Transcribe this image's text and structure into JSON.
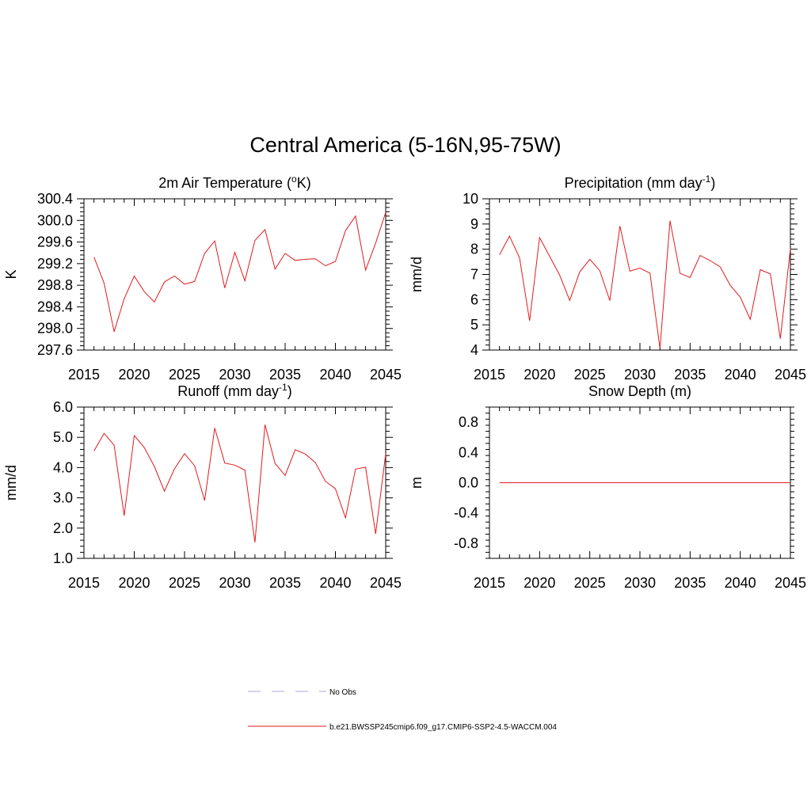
{
  "title": "Central America (5-16N,95-75W)",
  "colors": {
    "model": "#e31a1c",
    "obs": "#aaaadd",
    "axis": "#000000"
  },
  "legend": [
    {
      "label": "No Obs",
      "style": "dashed",
      "color": "#aaaadd"
    },
    {
      "label": "b.e21.BWSSP245cmip6.f09_g17.CMIP6-SSP2-4.5-WACCM.004",
      "style": "solid",
      "color": "#e31a1c"
    }
  ],
  "chart_data": [
    {
      "type": "line",
      "title": "2m Air Temperature (°K)",
      "title_html": "2m Air Temperature (<tspan baseline-shift='super' font-size='12'>o</tspan>K)",
      "ylabel": "K",
      "xlim": [
        2015,
        2045
      ],
      "ylim": [
        297.6,
        300.4
      ],
      "xticks": [
        2015,
        2020,
        2025,
        2030,
        2035,
        2040,
        2045
      ],
      "yticks": [
        "297.6",
        "298.0",
        "298.4",
        "298.8",
        "299.2",
        "299.6",
        "300.0",
        "300.4"
      ],
      "x": [
        2016,
        2017,
        2018,
        2019,
        2020,
        2021,
        2022,
        2023,
        2024,
        2025,
        2026,
        2027,
        2028,
        2029,
        2030,
        2031,
        2032,
        2033,
        2034,
        2035,
        2036,
        2037,
        2038,
        2039,
        2040,
        2041,
        2042,
        2043,
        2044,
        2045
      ],
      "series": [
        {
          "values": [
            299.32,
            298.84,
            297.94,
            298.55,
            298.97,
            298.68,
            298.49,
            298.86,
            298.97,
            298.82,
            298.87,
            299.39,
            299.62,
            298.75,
            299.41,
            298.88,
            299.63,
            299.83,
            299.1,
            299.39,
            299.26,
            299.28,
            299.29,
            299.16,
            299.24,
            299.81,
            300.08,
            299.08,
            299.58,
            300.15
          ]
        }
      ]
    },
    {
      "type": "line",
      "title": "Precipitation (mm day-1)",
      "title_html": "Precipitation (mm day<tspan baseline-shift='super' font-size='12'>-1</tspan>)",
      "ylabel": "mm/d",
      "xlim": [
        2015,
        2045
      ],
      "ylim": [
        4,
        10
      ],
      "xticks": [
        2015,
        2020,
        2025,
        2030,
        2035,
        2040,
        2045
      ],
      "yticks": [
        "4",
        "5",
        "6",
        "7",
        "8",
        "9",
        "10"
      ],
      "x": [
        2016,
        2017,
        2018,
        2019,
        2020,
        2021,
        2022,
        2023,
        2024,
        2025,
        2026,
        2027,
        2028,
        2029,
        2030,
        2031,
        2032,
        2033,
        2034,
        2035,
        2036,
        2037,
        2038,
        2039,
        2040,
        2041,
        2042,
        2043,
        2044,
        2045
      ],
      "series": [
        {
          "values": [
            7.78,
            8.52,
            7.66,
            5.16,
            8.46,
            7.72,
            6.97,
            5.97,
            7.1,
            7.6,
            7.15,
            5.96,
            8.92,
            7.13,
            7.25,
            7.05,
            4.06,
            9.13,
            7.04,
            6.88,
            7.75,
            7.55,
            7.3,
            6.57,
            6.1,
            5.22,
            7.19,
            7.02,
            4.45,
            8.02
          ]
        }
      ]
    },
    {
      "type": "line",
      "title": "Runoff (mm day-1)",
      "title_html": "Runoff (mm day<tspan baseline-shift='super' font-size='12'>-1</tspan>)",
      "ylabel": "mm/d",
      "xlim": [
        2015,
        2045
      ],
      "ylim": [
        1.0,
        6.0
      ],
      "xticks": [
        2015,
        2020,
        2025,
        2030,
        2035,
        2040,
        2045
      ],
      "yticks": [
        "1.0",
        "2.0",
        "3.0",
        "4.0",
        "5.0",
        "6.0"
      ],
      "x": [
        2016,
        2017,
        2018,
        2019,
        2020,
        2021,
        2022,
        2023,
        2024,
        2025,
        2026,
        2027,
        2028,
        2029,
        2030,
        2031,
        2032,
        2033,
        2034,
        2035,
        2036,
        2037,
        2038,
        2039,
        2040,
        2041,
        2042,
        2043,
        2044,
        2045
      ],
      "series": [
        {
          "values": [
            4.55,
            5.13,
            4.74,
            2.41,
            5.06,
            4.66,
            4.04,
            3.22,
            3.96,
            4.46,
            4.06,
            2.91,
            5.31,
            4.15,
            4.08,
            3.92,
            1.53,
            5.42,
            4.14,
            3.74,
            4.59,
            4.45,
            4.17,
            3.55,
            3.3,
            2.34,
            3.95,
            4.01,
            1.81,
            4.46
          ]
        }
      ]
    },
    {
      "type": "line",
      "title": "Snow Depth (m)",
      "title_html": "Snow Depth (m)",
      "ylabel": "m",
      "xlim": [
        2015,
        2045
      ],
      "ylim": [
        -1.0,
        1.0
      ],
      "xticks": [
        2015,
        2020,
        2025,
        2030,
        2035,
        2040,
        2045
      ],
      "yticks": [
        "-0.8",
        "-0.4",
        "0.0",
        "0.4",
        "0.8"
      ],
      "x": [
        2016,
        2017,
        2018,
        2019,
        2020,
        2021,
        2022,
        2023,
        2024,
        2025,
        2026,
        2027,
        2028,
        2029,
        2030,
        2031,
        2032,
        2033,
        2034,
        2035,
        2036,
        2037,
        2038,
        2039,
        2040,
        2041,
        2042,
        2043,
        2044,
        2045
      ],
      "series": [
        {
          "values": [
            0,
            0,
            0,
            0,
            0,
            0,
            0,
            0,
            0,
            0,
            0,
            0,
            0,
            0,
            0,
            0,
            0,
            0,
            0,
            0,
            0,
            0,
            0,
            0,
            0,
            0,
            0,
            0,
            0,
            0
          ]
        }
      ]
    }
  ]
}
